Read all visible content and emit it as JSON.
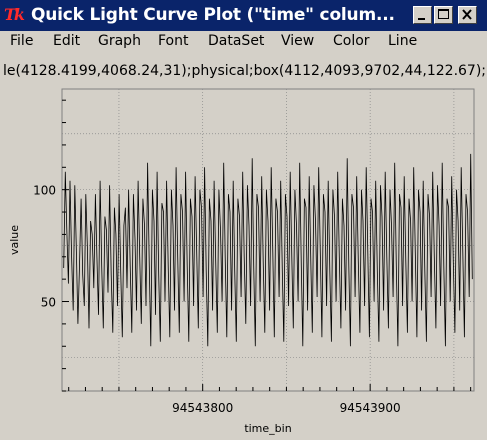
{
  "window": {
    "title": "Quick Light Curve Plot (\"time\" colum...",
    "app_icon": "tk-feather-icon",
    "controls": [
      "minimize-icon",
      "maximize-icon",
      "close-icon"
    ]
  },
  "menu": {
    "items": [
      "File",
      "Edit",
      "Graph",
      "Font",
      "DataSet",
      "View",
      "Color",
      "Line"
    ]
  },
  "command_line": "le(4128.4199,4068.24,31);physical;box(4112,4093,9702,44,122.67);p",
  "chart_data": {
    "type": "line",
    "xlabel": "time_bin",
    "ylabel": "value",
    "xlim": [
      94543716,
      94543962
    ],
    "ylim": [
      10,
      145
    ],
    "xticks": [
      94543800,
      94543900
    ],
    "yticks": [
      50,
      100
    ],
    "grid": true,
    "line_color": "#000000",
    "series": [
      {
        "y": [
          65,
          108,
          82,
          58,
          104,
          70,
          46,
          102,
          74,
          40,
          66,
          96,
          62,
          48,
          98,
          74,
          38,
          86,
          80,
          56,
          98,
          70,
          44,
          104,
          66,
          38,
          88,
          82,
          54,
          102,
          62,
          36,
          92,
          80,
          48,
          98,
          64,
          34,
          84,
          92,
          56,
          100,
          66,
          36,
          98,
          78,
          46,
          104,
          70,
          40,
          96,
          84,
          48,
          112,
          68,
          30,
          100,
          86,
          44,
          108,
          62,
          32,
          94,
          90,
          50,
          104,
          66,
          34,
          100,
          84,
          46,
          110,
          70,
          36,
          98,
          90,
          50,
          108,
          66,
          32,
          96,
          88,
          48,
          106,
          72,
          38,
          100,
          92,
          52,
          110,
          64,
          30,
          96,
          86,
          46,
          104,
          68,
          36,
          100,
          82,
          50,
          112,
          70,
          34,
          98,
          90,
          46,
          104,
          64,
          32,
          96,
          88,
          52,
          108,
          70,
          40,
          102,
          84,
          48,
          114,
          66,
          30,
          98,
          92,
          50,
          106,
          68,
          36,
          100,
          86,
          46,
          110,
          72,
          34,
          96,
          90,
          52,
          104,
          64,
          32,
          98,
          88,
          48,
          108,
          70,
          38,
          100,
          84,
          50,
          112,
          66,
          30,
          96,
          92,
          46,
          106,
          68,
          36,
          102,
          86,
          52,
          110,
          72,
          34,
          98,
          90,
          48,
          104,
          64,
          32,
          100,
          88,
          50,
          108,
          70,
          38,
          96,
          84,
          46,
          114,
          66,
          30,
          98,
          92,
          52,
          106,
          68,
          36,
          100,
          86,
          48,
          110,
          72,
          34,
          96,
          90,
          50,
          104,
          64,
          32,
          102,
          88,
          46,
          108,
          70,
          38,
          100,
          84,
          52,
          112,
          66,
          30,
          98,
          92,
          48,
          106,
          68,
          36,
          96,
          86,
          50,
          110,
          72,
          34,
          100,
          90,
          46,
          104,
          64,
          32,
          98,
          88,
          52,
          108,
          70,
          38,
          102,
          84,
          48,
          112,
          66,
          30,
          96,
          92,
          50,
          106,
          68,
          36,
          100,
          86,
          46,
          110,
          72,
          34,
          98,
          90,
          52,
          116,
          60
        ]
      }
    ]
  }
}
